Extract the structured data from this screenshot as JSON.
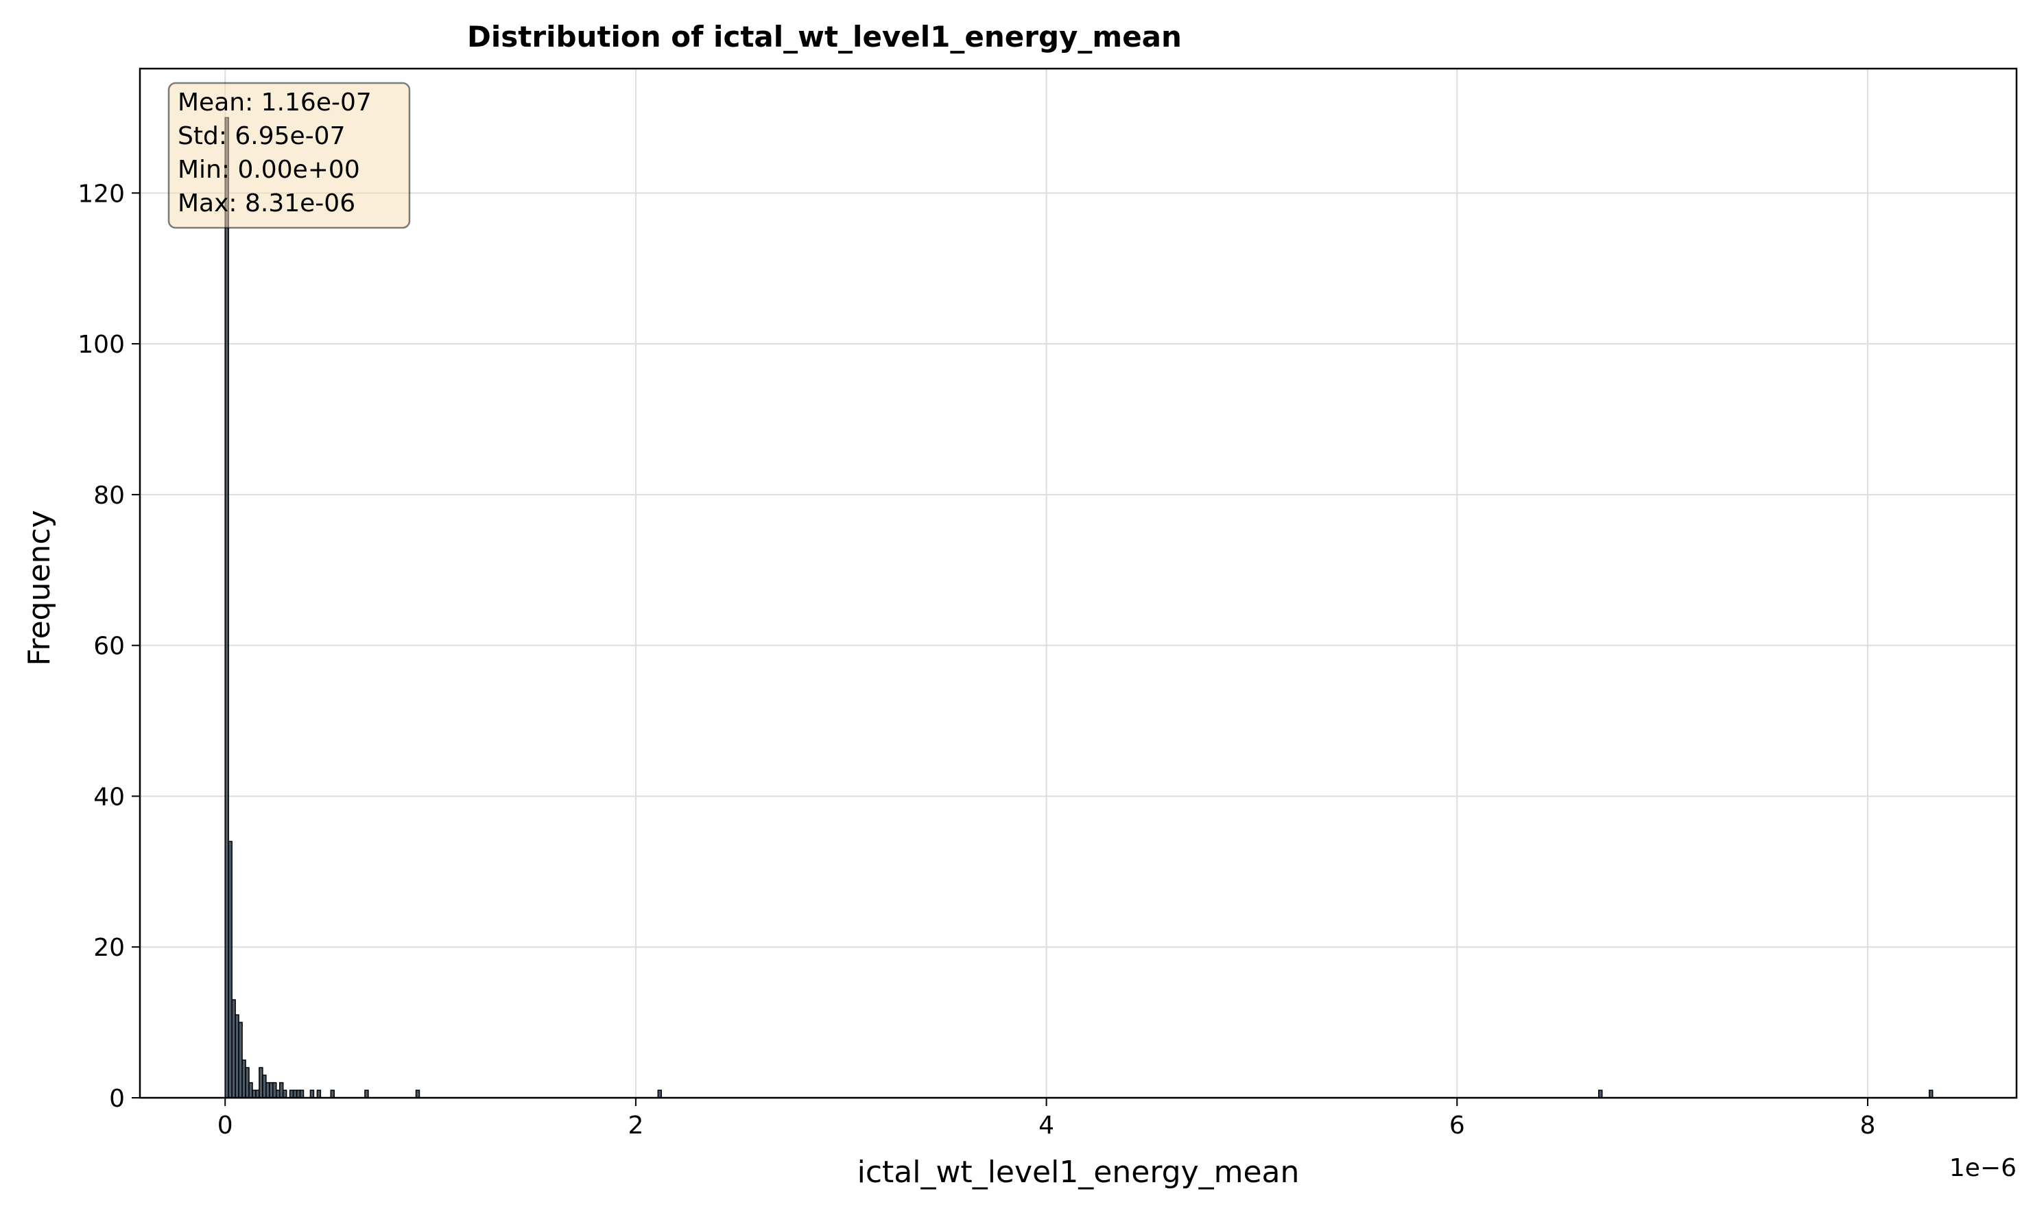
{
  "chart_data": {
    "type": "bar",
    "title": "Distribution of ictal_wt_level1_energy_mean",
    "xlabel": "ictal_wt_level1_energy_mean",
    "ylabel": "Frequency",
    "x_offset_label": "1e−6",
    "x_ticks": [
      0,
      2,
      4,
      6,
      8
    ],
    "y_ticks": [
      0,
      20,
      40,
      60,
      80,
      100,
      120
    ],
    "xlim": [
      -0.415,
      8.725
    ],
    "ylim": [
      0,
      136.5
    ],
    "grid": true,
    "bar_color": "#2c3e50",
    "bin_width": 0.0166,
    "bins": [
      {
        "x": 0.0,
        "count": 130
      },
      {
        "x": 0.0166,
        "count": 34
      },
      {
        "x": 0.0332,
        "count": 13
      },
      {
        "x": 0.0498,
        "count": 11
      },
      {
        "x": 0.0664,
        "count": 10
      },
      {
        "x": 0.083,
        "count": 5
      },
      {
        "x": 0.0996,
        "count": 4
      },
      {
        "x": 0.1162,
        "count": 2
      },
      {
        "x": 0.1328,
        "count": 1
      },
      {
        "x": 0.1494,
        "count": 1
      },
      {
        "x": 0.166,
        "count": 4
      },
      {
        "x": 0.1826,
        "count": 3
      },
      {
        "x": 0.1992,
        "count": 2
      },
      {
        "x": 0.2158,
        "count": 2
      },
      {
        "x": 0.2324,
        "count": 2
      },
      {
        "x": 0.249,
        "count": 1
      },
      {
        "x": 0.2656,
        "count": 2
      },
      {
        "x": 0.2822,
        "count": 1
      },
      {
        "x": 0.3154,
        "count": 1
      },
      {
        "x": 0.332,
        "count": 1
      },
      {
        "x": 0.3486,
        "count": 1
      },
      {
        "x": 0.3652,
        "count": 1
      },
      {
        "x": 0.415,
        "count": 1
      },
      {
        "x": 0.4482,
        "count": 1
      },
      {
        "x": 0.5146,
        "count": 1
      },
      {
        "x": 0.6806,
        "count": 1
      },
      {
        "x": 0.9296,
        "count": 1
      },
      {
        "x": 2.1082,
        "count": 1
      },
      {
        "x": 6.6898,
        "count": 1
      },
      {
        "x": 8.2998,
        "count": 1
      }
    ],
    "stats_box": {
      "mean": "Mean: 1.16e-07",
      "std": "Std: 6.95e-07",
      "min": "Min: 0.00e+00",
      "max": "Max: 8.31e-06"
    }
  }
}
